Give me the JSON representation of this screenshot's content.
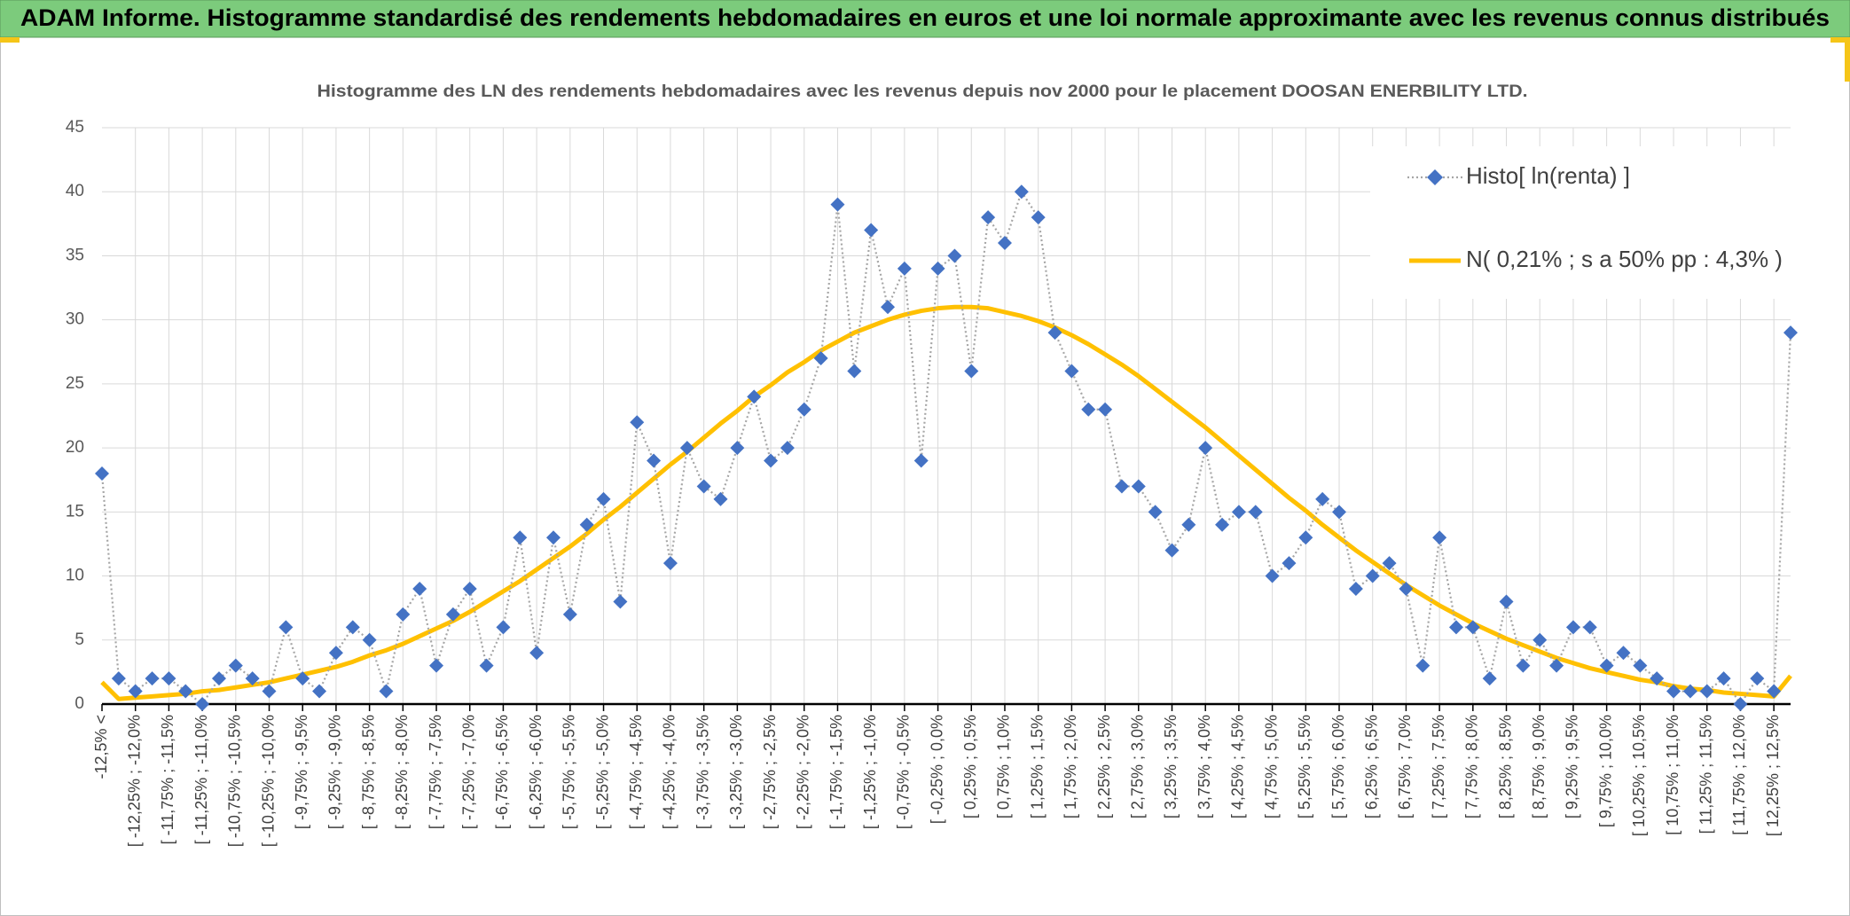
{
  "chart_data": {
    "type": "line",
    "title": "ADAM Informe. Histogramme standardisé des rendements hebdomadaires en euros et une loi normale approximante avec les revenus connus distribués",
    "subtitle": "Histogramme des LN des rendements hebdomadaires avec les revenus depuis nov 2000 pour le placement DOOSAN ENERBILITY LTD.",
    "categories": [
      "-12,5% <",
      null,
      "[ -12,25% ; -12,0%",
      null,
      "[ -11,75% ; -11,5%",
      null,
      "[ -11,25% ; -11,0%",
      null,
      "[ -10,75% ; -10,5%",
      null,
      "[ -10,25% ; -10,0%",
      null,
      "[ -9,75% ; -9,5%",
      null,
      "[ -9,25% ; -9,0%",
      null,
      "[ -8,75% ; -8,5%",
      null,
      "[ -8,25% ; -8,0%",
      null,
      "[ -7,75% ; -7,5%",
      null,
      "[ -7,25% ; -7,0%",
      null,
      "[ -6,75% ; -6,5%",
      null,
      "[ -6,25% ; -6,0%",
      null,
      "[ -5,75% ; -5,5%",
      null,
      "[ -5,25% ; -5,0%",
      null,
      "[ -4,75% ; -4,5%",
      null,
      "[ -4,25% ; -4,0%",
      null,
      "[ -3,75% ; -3,5%",
      null,
      "[ -3,25% ; -3,0%",
      null,
      "[ -2,75% ; -2,5%",
      null,
      "[ -2,25% ; -2,0%",
      null,
      "[ -1,75% ; -1,5%",
      null,
      "[ -1,25% ; -1,0%",
      null,
      "[ -0,75% ; -0,5%",
      null,
      "[ -0,25% ; 0,0%",
      null,
      "[ 0,25% ; 0,5%",
      null,
      "[ 0,75% ; 1,0%",
      null,
      "[ 1,25% ; 1,5%",
      null,
      "[ 1,75% ; 2,0%",
      null,
      "[ 2,25% ; 2,5%",
      null,
      "[ 2,75% ; 3,0%",
      null,
      "[ 3,25% ; 3,5%",
      null,
      "[ 3,75% ; 4,0%",
      null,
      "[ 4,25% ; 4,5%",
      null,
      "[ 4,75% ; 5,0%",
      null,
      "[ 5,25% ; 5,5%",
      null,
      "[ 5,75% ; 6,0%",
      null,
      "[ 6,25% ; 6,5%",
      null,
      "[ 6,75% ; 7,0%",
      null,
      "[ 7,25% ; 7,5%",
      null,
      "[ 7,75% ; 8,0%",
      null,
      "[ 8,25% ; 8,5%",
      null,
      "[ 8,75% ; 9,0%",
      null,
      "[ 9,25% ; 9,5%",
      null,
      "[ 9,75% ; 10,0%",
      null,
      "[ 10,25% ; 10,5%",
      null,
      "[ 10,75% ; 11,0%",
      null,
      "[ 11,25% ; 11,5%",
      null,
      "[ 11,75% ; 12,0%",
      null,
      "[ 12,25% ; 12,5%",
      null
    ],
    "series": [
      {
        "name": "Histo[ ln(renta) ]",
        "color": "#4472c4",
        "line_color": "#a6a6a6",
        "style": "markers",
        "values": [
          18,
          2,
          1,
          2,
          2,
          1,
          0,
          2,
          3,
          2,
          1,
          6,
          2,
          1,
          4,
          6,
          5,
          1,
          7,
          9,
          3,
          7,
          9,
          3,
          6,
          13,
          4,
          13,
          7,
          14,
          16,
          8,
          22,
          19,
          11,
          20,
          17,
          16,
          20,
          24,
          19,
          20,
          23,
          27,
          39,
          26,
          37,
          31,
          34,
          19,
          34,
          35,
          26,
          38,
          36,
          40,
          38,
          29,
          26,
          23,
          23,
          17,
          17,
          15,
          12,
          14,
          20,
          14,
          15,
          15,
          10,
          11,
          13,
          16,
          15,
          9,
          10,
          11,
          9,
          3,
          13,
          6,
          6,
          2,
          8,
          3,
          5,
          3,
          6,
          6,
          3,
          4,
          3,
          2,
          1,
          1,
          1,
          2,
          0,
          2,
          1,
          29
        ]
      },
      {
        "name": "N( 0,21% ; s a 50% pp : 4,3% )",
        "color": "#ffc000",
        "style": "line",
        "values": [
          1.7,
          0.4,
          0.5,
          0.6,
          0.7,
          0.8,
          1.0,
          1.1,
          1.3,
          1.5,
          1.7,
          2.0,
          2.3,
          2.6,
          2.9,
          3.3,
          3.8,
          4.2,
          4.7,
          5.3,
          5.9,
          6.5,
          7.2,
          8.0,
          8.8,
          9.6,
          10.5,
          11.4,
          12.3,
          13.3,
          14.4,
          15.4,
          16.5,
          17.6,
          18.7,
          19.7,
          20.8,
          21.9,
          22.9,
          24.0,
          24.9,
          25.9,
          26.7,
          27.6,
          28.3,
          29.0,
          29.5,
          30.0,
          30.4,
          30.7,
          30.9,
          31.0,
          31.0,
          30.9,
          30.6,
          30.3,
          29.9,
          29.4,
          28.8,
          28.1,
          27.3,
          26.5,
          25.6,
          24.6,
          23.6,
          22.6,
          21.6,
          20.5,
          19.4,
          18.3,
          17.2,
          16.1,
          15.1,
          14.0,
          13.0,
          12.0,
          11.1,
          10.2,
          9.3,
          8.5,
          7.7,
          7.0,
          6.3,
          5.7,
          5.1,
          4.6,
          4.1,
          3.6,
          3.2,
          2.8,
          2.5,
          2.2,
          1.9,
          1.7,
          1.4,
          1.2,
          1.1,
          0.9,
          0.8,
          0.7,
          0.6,
          2.2
        ]
      }
    ],
    "ylim": [
      0,
      45
    ],
    "yticks": [
      0,
      5,
      10,
      15,
      20,
      25,
      30,
      35,
      40,
      45
    ],
    "grid": true,
    "legend": "top-right"
  }
}
